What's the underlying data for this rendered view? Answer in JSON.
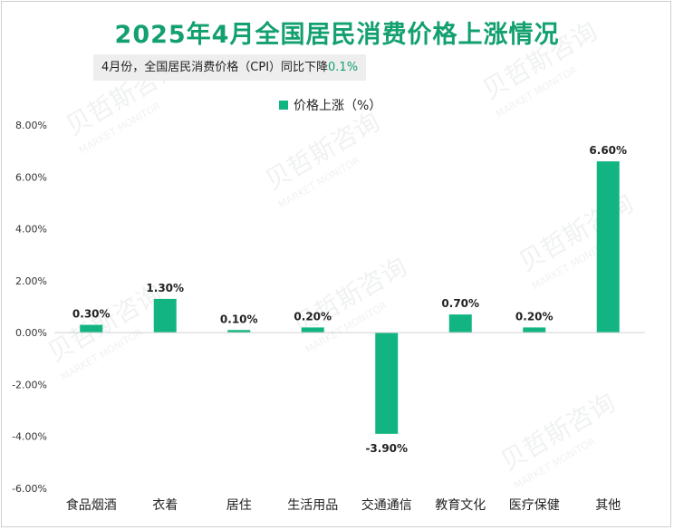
{
  "colors": {
    "accent": "#13a06f",
    "bar": "#12b582"
  },
  "header": {
    "title": "2025年4月全国居民消费价格上涨情况",
    "subtitle_main": "4月份，全国居民消费价格（CPI）同比下降",
    "subtitle_value": "0.1%"
  },
  "watermark": {
    "brand": "贝哲斯咨询",
    "brand_en": "MARKET MONITOR"
  },
  "chart_data": {
    "type": "bar",
    "title": "2025年4月全国居民消费价格上涨情况",
    "categories": [
      "食品烟酒",
      "衣着",
      "居住",
      "生活用品",
      "交通通信",
      "教育文化",
      "医疗保健",
      "其他"
    ],
    "series": [
      {
        "name": "价格上涨（%）",
        "values": [
          0.3,
          1.3,
          0.1,
          0.2,
          -3.9,
          0.7,
          0.2,
          6.6
        ]
      }
    ],
    "data_labels": [
      "0.30%",
      "1.30%",
      "0.10%",
      "0.20%",
      "-3.90%",
      "0.70%",
      "0.20%",
      "6.60%"
    ],
    "y_ticks": [
      8,
      6,
      4,
      2,
      0,
      -2,
      -4,
      -6
    ],
    "y_tick_labels": [
      "8.00%",
      "6.00%",
      "4.00%",
      "2.00%",
      "0.00%",
      "-2.00%",
      "-4.00%",
      "-6.00%"
    ],
    "ylim": [
      -6,
      8
    ],
    "grid": false,
    "legend_position": "top"
  }
}
